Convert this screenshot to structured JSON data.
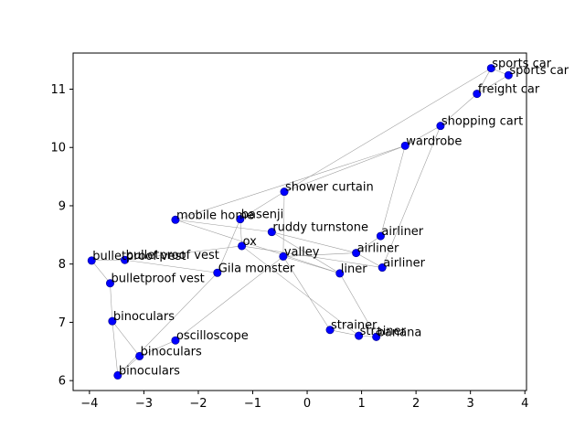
{
  "chart_data": {
    "type": "scatter",
    "title": "",
    "xlabel": "",
    "ylabel": "",
    "xlim": [
      -4.3,
      4.03
    ],
    "ylim": [
      5.83,
      11.62
    ],
    "xticks": [
      -4,
      -3,
      -2,
      -1,
      0,
      1,
      2,
      3,
      4
    ],
    "yticks": [
      6,
      7,
      8,
      9,
      10,
      11
    ],
    "grid": false,
    "legend": "none",
    "colors": {
      "marker": "#0000ff",
      "edge": "#9a9a9a"
    },
    "points": [
      {
        "label": "sports car",
        "x": 3.38,
        "y": 11.36
      },
      {
        "label": "sports car",
        "x": 3.7,
        "y": 11.24
      },
      {
        "label": "freight car",
        "x": 3.12,
        "y": 10.92
      },
      {
        "label": "shopping cart",
        "x": 2.45,
        "y": 10.37
      },
      {
        "label": "wardrobe",
        "x": 1.8,
        "y": 10.03
      },
      {
        "label": "shower curtain",
        "x": -0.42,
        "y": 9.24
      },
      {
        "label": "mobile home",
        "x": -2.42,
        "y": 8.76
      },
      {
        "label": "basenji",
        "x": -1.23,
        "y": 8.77
      },
      {
        "label": "ruddy turnstone",
        "x": -0.65,
        "y": 8.55
      },
      {
        "label": "airliner",
        "x": 1.35,
        "y": 8.48
      },
      {
        "label": "ox",
        "x": -1.2,
        "y": 8.31
      },
      {
        "label": "airliner",
        "x": 0.9,
        "y": 8.19
      },
      {
        "label": "valley",
        "x": -0.44,
        "y": 8.13
      },
      {
        "label": "bulletproof vest",
        "x": -3.96,
        "y": 8.06
      },
      {
        "label": "bulletproof vest",
        "x": -3.35,
        "y": 8.07
      },
      {
        "label": "airliner",
        "x": 1.38,
        "y": 7.94
      },
      {
        "label": "liner",
        "x": 0.6,
        "y": 7.84
      },
      {
        "label": "Gila monster",
        "x": -1.65,
        "y": 7.85
      },
      {
        "label": "bulletproof vest",
        "x": -3.62,
        "y": 7.67
      },
      {
        "label": "binoculars",
        "x": -3.58,
        "y": 7.02
      },
      {
        "label": "strainer",
        "x": 0.42,
        "y": 6.87
      },
      {
        "label": "strainer",
        "x": 0.95,
        "y": 6.77
      },
      {
        "label": "banana",
        "x": 1.27,
        "y": 6.75
      },
      {
        "label": "oscilloscope",
        "x": -2.42,
        "y": 6.69
      },
      {
        "label": "binoculars",
        "x": -3.08,
        "y": 6.42
      },
      {
        "label": "binoculars",
        "x": -3.48,
        "y": 6.09
      }
    ],
    "edges": [
      [
        0,
        1
      ],
      [
        1,
        2
      ],
      [
        0,
        2
      ],
      [
        2,
        3
      ],
      [
        3,
        4
      ],
      [
        0,
        5
      ],
      [
        5,
        4
      ],
      [
        4,
        6
      ],
      [
        4,
        9
      ],
      [
        3,
        15
      ],
      [
        5,
        7
      ],
      [
        5,
        12
      ],
      [
        6,
        8
      ],
      [
        6,
        16
      ],
      [
        7,
        10
      ],
      [
        7,
        17
      ],
      [
        8,
        11
      ],
      [
        8,
        16
      ],
      [
        9,
        11
      ],
      [
        11,
        15
      ],
      [
        11,
        12
      ],
      [
        12,
        16
      ],
      [
        12,
        20
      ],
      [
        10,
        21
      ],
      [
        13,
        14
      ],
      [
        13,
        18
      ],
      [
        14,
        17
      ],
      [
        14,
        10
      ],
      [
        18,
        19
      ],
      [
        19,
        24
      ],
      [
        19,
        25
      ],
      [
        24,
        25
      ],
      [
        24,
        23
      ],
      [
        23,
        12
      ],
      [
        25,
        17
      ],
      [
        20,
        21
      ],
      [
        21,
        22
      ],
      [
        16,
        22
      ],
      [
        10,
        15
      ]
    ]
  }
}
